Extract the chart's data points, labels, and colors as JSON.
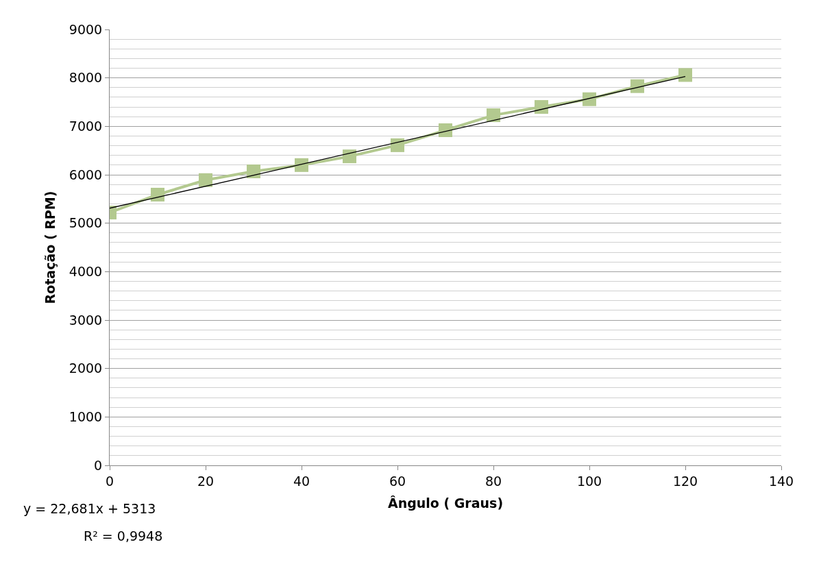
{
  "chart_data": {
    "type": "line",
    "xlabel": "Ângulo ( Graus)",
    "ylabel": "Rotação ( RPM)",
    "x": [
      0,
      10,
      20,
      30,
      40,
      50,
      60,
      70,
      80,
      90,
      100,
      110,
      120
    ],
    "series": [
      {
        "color": "#b3c98f",
        "values": [
          5220,
          5590,
          5890,
          6070,
          6200,
          6380,
          6610,
          6920,
          7230,
          7400,
          7560,
          7830,
          8060
        ],
        "marker": "square"
      },
      {
        "type": "line",
        "color": "#000000",
        "x": [
          0,
          120
        ],
        "values": [
          5310,
          8030
        ],
        "marker": "none"
      }
    ],
    "xlim": [
      0,
      140
    ],
    "xticks": [
      0,
      20,
      40,
      60,
      80,
      100,
      120,
      140
    ],
    "ylim": [
      0,
      9000
    ],
    "yticks": [
      0,
      1000,
      2000,
      3000,
      4000,
      5000,
      6000,
      7000,
      8000,
      9000
    ],
    "grid": "y",
    "annotations": [
      "y = 22,681x + 5313",
      "R² = 0,9948"
    ]
  }
}
